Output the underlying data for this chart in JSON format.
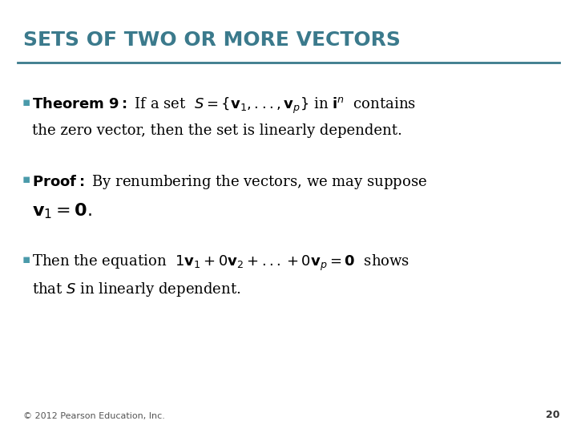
{
  "title": "SETS OF TWO OR MORE VECTORS",
  "title_color": "#3b7a8c",
  "title_underline_color": "#3b7a8c",
  "bg_color": "#ffffff",
  "bullet_color": "#4a9aaa",
  "text_color": "#000000",
  "footer_text": "© 2012 Pearson Education, Inc.",
  "page_number": "20"
}
